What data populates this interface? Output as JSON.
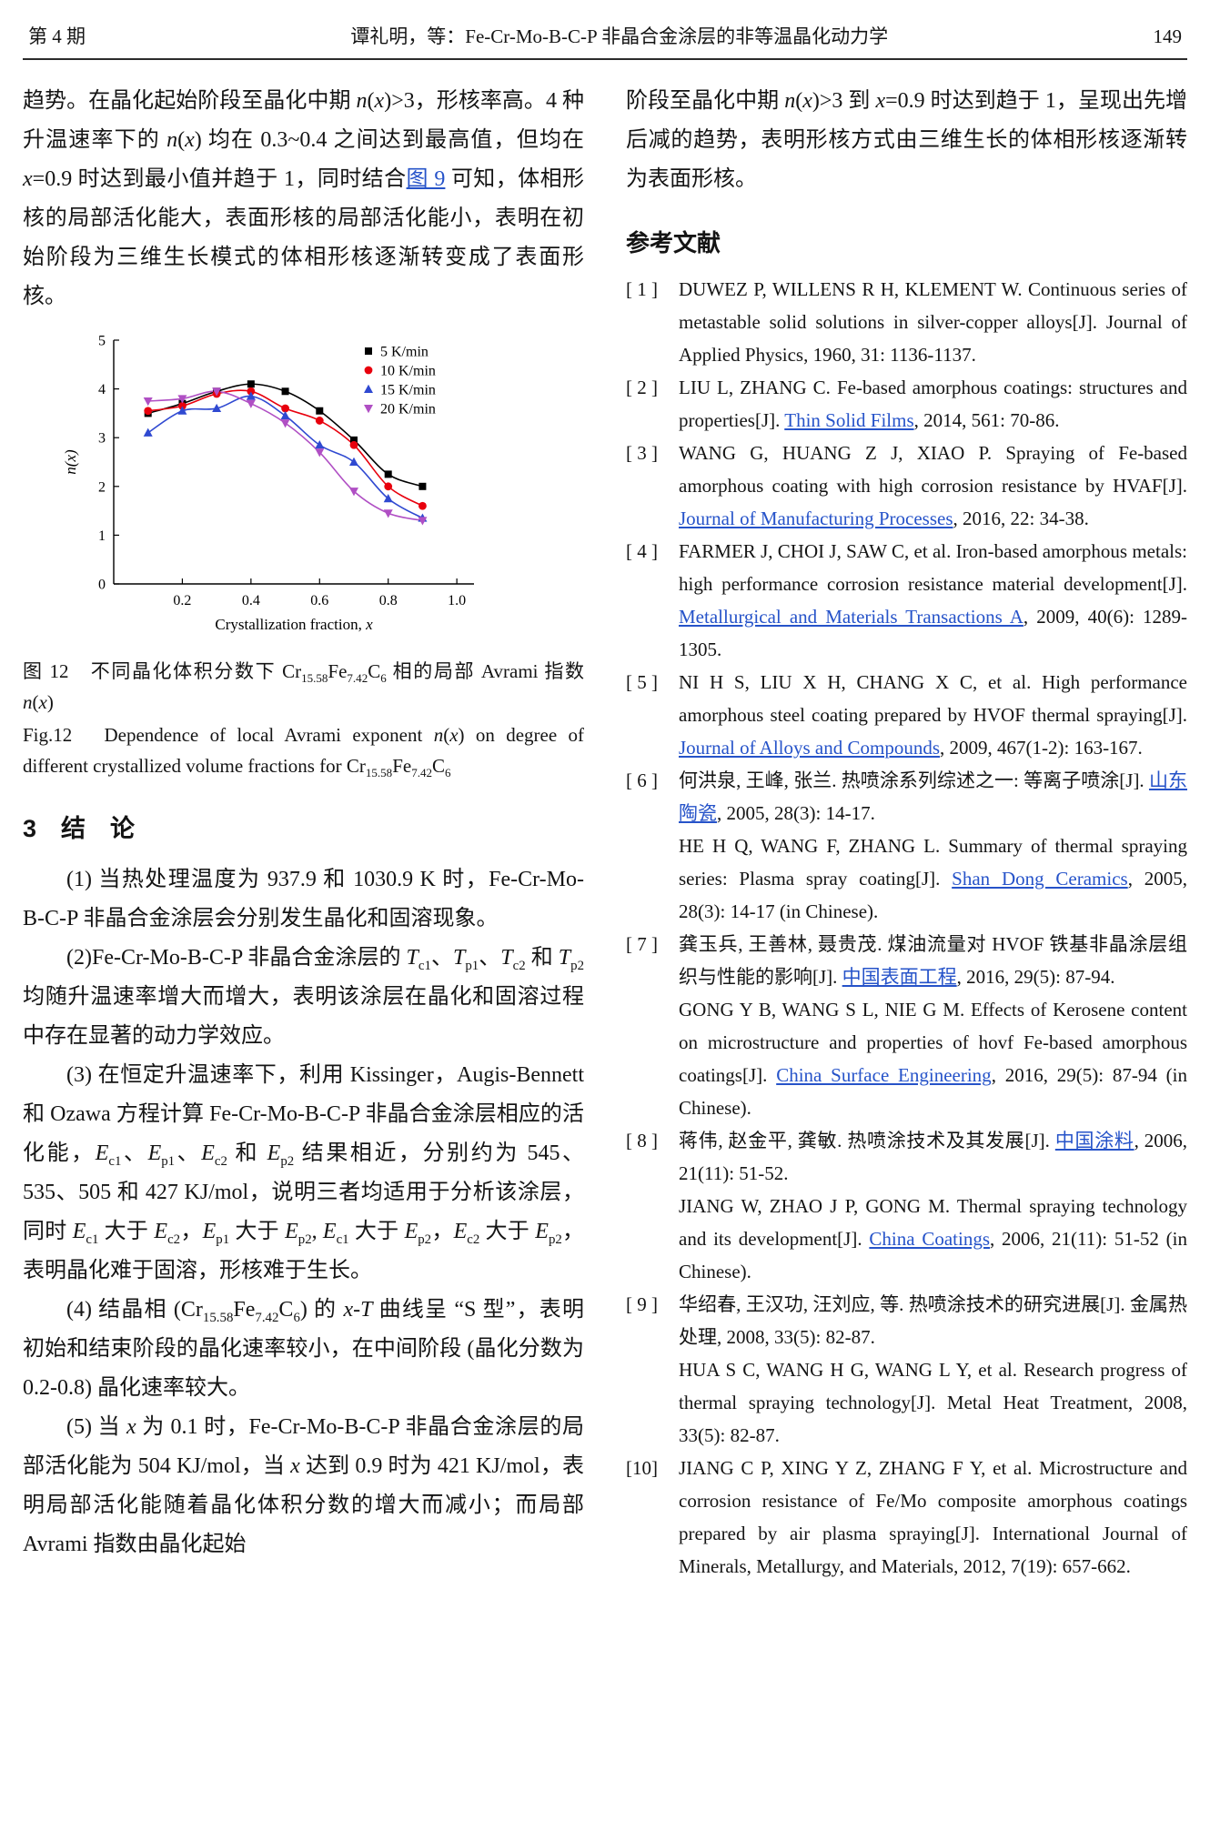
{
  "header": {
    "issue": "第 4 期",
    "title": "谭礼明，等：Fe-Cr-Mo-B-C-P 非晶合金涂层的非等温晶化动力学",
    "page_number": "149"
  },
  "colors": {
    "link": "#2653c9",
    "text": "#141414",
    "axis": "#000000"
  },
  "left_column": {
    "para_continuation": [
      {
        "t": "趋势。在晶化起始阶段至晶化中期 "
      },
      {
        "t": "n",
        "i": true
      },
      {
        "t": "("
      },
      {
        "t": "x",
        "i": true
      },
      {
        "t": ")>3，形核率高。4 种升温速率下的 "
      },
      {
        "t": "n",
        "i": true
      },
      {
        "t": "("
      },
      {
        "t": "x",
        "i": true
      },
      {
        "t": ") 均在 0.3~0.4 之间达到最高值，但均在 "
      },
      {
        "t": "x",
        "i": true
      },
      {
        "t": "=0.9 时达到最小值并趋于 1，同时结合"
      },
      {
        "t": "图 9",
        "link": true,
        "name": "figure-9-link"
      },
      {
        "t": " 可知，体相形核的局部活化能大，表面形核的局部活化能小，表明在初始阶段为三维生长模式的体相形核逐渐转变成了表面形核。"
      }
    ],
    "figure": {
      "caption_zh": [
        {
          "t": "图 12　不同晶化体积分数下 Cr"
        },
        {
          "t": "15.58",
          "sub": true
        },
        {
          "t": "Fe"
        },
        {
          "t": "7.42",
          "sub": true
        },
        {
          "t": "C"
        },
        {
          "t": "6",
          "sub": true
        },
        {
          "t": " 相的局部 Avrami 指数 "
        },
        {
          "t": "n",
          "i": true
        },
        {
          "t": "("
        },
        {
          "t": "x",
          "i": true
        },
        {
          "t": ")"
        }
      ],
      "caption_en": [
        {
          "t": "Fig.12　Dependence of local Avrami exponent "
        },
        {
          "t": "n",
          "i": true
        },
        {
          "t": "("
        },
        {
          "t": "x",
          "i": true
        },
        {
          "t": ") on degree of different crystallized volume fractions for Cr"
        },
        {
          "t": "15.58",
          "sub": true
        },
        {
          "t": "Fe"
        },
        {
          "t": "7.42",
          "sub": true
        },
        {
          "t": "C"
        },
        {
          "t": "6",
          "sub": true
        }
      ]
    },
    "section": {
      "heading": "3　结　论",
      "paragraphs": [
        [
          {
            "t": "(1) 当热处理温度为 937.9 和 1030.9 K 时，Fe-Cr-Mo-B-C-P 非晶合金涂层会分别发生晶化和固溶现象。"
          }
        ],
        [
          {
            "t": "(2)Fe-Cr-Mo-B-C-P 非晶合金涂层的 "
          },
          {
            "t": "T",
            "i": true
          },
          {
            "t": "c1",
            "sub": true
          },
          {
            "t": "、"
          },
          {
            "t": "T",
            "i": true
          },
          {
            "t": "p1",
            "sub": true
          },
          {
            "t": "、"
          },
          {
            "t": "T",
            "i": true
          },
          {
            "t": "c2",
            "sub": true
          },
          {
            "t": " 和 "
          },
          {
            "t": "T",
            "i": true
          },
          {
            "t": "p2",
            "sub": true
          },
          {
            "t": " 均随升温速率增大而增大，表明该涂层在晶化和固溶过程中存在显著的动力学效应。"
          }
        ],
        [
          {
            "t": "(3) 在恒定升温速率下，利用 Kissinger，Augis-Bennett 和 Ozawa 方程计算 Fe-Cr-Mo-B-C-P 非晶合金涂层相应的活化能，"
          },
          {
            "t": "E",
            "i": true
          },
          {
            "t": "c1",
            "sub": true
          },
          {
            "t": "、"
          },
          {
            "t": "E",
            "i": true
          },
          {
            "t": "p1",
            "sub": true
          },
          {
            "t": "、"
          },
          {
            "t": "E",
            "i": true
          },
          {
            "t": "c2",
            "sub": true
          },
          {
            "t": " 和 "
          },
          {
            "t": "E",
            "i": true
          },
          {
            "t": "p2",
            "sub": true
          },
          {
            "t": " 结果相近，分别约为 545、535、505 和 427 KJ/mol，说明三者均适用于分析该涂层，同时 "
          },
          {
            "t": "E",
            "i": true
          },
          {
            "t": "c1",
            "sub": true
          },
          {
            "t": " 大于 "
          },
          {
            "t": "E",
            "i": true
          },
          {
            "t": "c2",
            "sub": true
          },
          {
            "t": "，"
          },
          {
            "t": "E",
            "i": true
          },
          {
            "t": "p1",
            "sub": true
          },
          {
            "t": " 大于 "
          },
          {
            "t": "E",
            "i": true
          },
          {
            "t": "p2",
            "sub": true
          },
          {
            "t": ", "
          },
          {
            "t": "E",
            "i": true
          },
          {
            "t": "c1",
            "sub": true
          },
          {
            "t": " 大于 "
          },
          {
            "t": "E",
            "i": true
          },
          {
            "t": "p2",
            "sub": true
          },
          {
            "t": "，"
          },
          {
            "t": "E",
            "i": true
          },
          {
            "t": "c2",
            "sub": true
          },
          {
            "t": " 大于 "
          },
          {
            "t": "E",
            "i": true
          },
          {
            "t": "p2",
            "sub": true
          },
          {
            "t": "，表明晶化难于固溶，形核难于生长。"
          }
        ],
        [
          {
            "t": "(4) 结晶相 (Cr"
          },
          {
            "t": "15.58",
            "sub": true
          },
          {
            "t": "Fe"
          },
          {
            "t": "7.42",
            "sub": true
          },
          {
            "t": "C"
          },
          {
            "t": "6",
            "sub": true
          },
          {
            "t": ") 的 "
          },
          {
            "t": "x",
            "i": true
          },
          {
            "t": "-"
          },
          {
            "t": "T",
            "i": true
          },
          {
            "t": " 曲线呈 “S 型”，表明初始和结束阶段的晶化速率较小，在中间阶段 (晶化分数为 0.2-0.8) 晶化速率较大。"
          }
        ],
        [
          {
            "t": "(5) 当 "
          },
          {
            "t": "x",
            "i": true
          },
          {
            "t": " 为 0.1 时，Fe-Cr-Mo-B-C-P 非晶合金涂层的局部活化能为 504 KJ/mol，当 "
          },
          {
            "t": "x",
            "i": true
          },
          {
            "t": " 达到 0.9 时为 421 KJ/mol，表明局部活化能随着晶化体积分数的增大而减小；而局部 Avrami 指数由晶化起始"
          }
        ]
      ]
    }
  },
  "right_column": {
    "para_continuation": [
      {
        "t": "阶段至晶化中期 "
      },
      {
        "t": "n",
        "i": true
      },
      {
        "t": "("
      },
      {
        "t": "x",
        "i": true
      },
      {
        "t": ")>3 到 "
      },
      {
        "t": "x",
        "i": true
      },
      {
        "t": "=0.9 时达到趋于 1，呈现出先增后减的趋势，表明形核方式由三维生长的体相形核逐渐转为表面形核。"
      }
    ],
    "references_heading": "参考文献",
    "references": [
      {
        "label": "[ 1 ]",
        "paras": [
          [
            {
              "t": "DUWEZ P, WILLENS R H, KLEMENT W. Continuous series of metastable solid solutions in silver-copper alloys[J]. Journal of Applied Physics, 1960, 31: 1136-1137."
            }
          ]
        ]
      },
      {
        "label": "[ 2 ]",
        "paras": [
          [
            {
              "t": "LIU L, ZHANG C. Fe-based amorphous coatings: structures and properties[J]. "
            },
            {
              "t": "Thin Solid Films",
              "link": true,
              "name": "journal-link"
            },
            {
              "t": ", 2014, 561: 70-86."
            }
          ]
        ]
      },
      {
        "label": "[ 3 ]",
        "paras": [
          [
            {
              "t": "WANG G, HUANG Z J, XIAO P. Spraying of Fe-based amorphous coating with high corrosion resistance by HVAF[J]. "
            },
            {
              "t": "Journal of Manufacturing Processes",
              "link": true,
              "name": "journal-link"
            },
            {
              "t": ", 2016, 22: 34-38."
            }
          ]
        ]
      },
      {
        "label": "[ 4 ]",
        "paras": [
          [
            {
              "t": "FARMER J, CHOI J, SAW C, et al. Iron-based amorphous metals: high performance corrosion resistance material development[J]. "
            },
            {
              "t": "Metallurgical and Materials Transactions A",
              "link": true,
              "name": "journal-link"
            },
            {
              "t": ", 2009, 40(6): 1289-1305."
            }
          ]
        ]
      },
      {
        "label": "[ 5 ]",
        "paras": [
          [
            {
              "t": "NI H S, LIU X H, CHANG X C, et al. High performance amorphous steel coating prepared by HVOF thermal spraying[J]. "
            },
            {
              "t": "Journal of Alloys and Compounds",
              "link": true,
              "name": "journal-link"
            },
            {
              "t": ", 2009, 467(1-2): 163-167."
            }
          ]
        ]
      },
      {
        "label": "[ 6 ]",
        "paras": [
          [
            {
              "t": "何洪泉, 王峰, 张兰. 热喷涂系列综述之一: 等离子喷涂[J]. "
            },
            {
              "t": "山东陶瓷",
              "link": true,
              "name": "journal-link"
            },
            {
              "t": ", 2005, 28(3): 14-17."
            }
          ],
          [
            {
              "t": "HE H Q, WANG F, ZHANG L. Summary of thermal spraying series: Plasma spray coating[J]. "
            },
            {
              "t": "Shan Dong Ceramics",
              "link": true,
              "name": "journal-link"
            },
            {
              "t": ", 2005, 28(3): 14-17 (in Chinese)."
            }
          ]
        ]
      },
      {
        "label": "[ 7 ]",
        "paras": [
          [
            {
              "t": "龚玉兵, 王善林, 聂贵茂. 煤油流量对 HVOF 铁基非晶涂层组织与性能的影响[J]. "
            },
            {
              "t": "中国表面工程",
              "link": true,
              "name": "journal-link"
            },
            {
              "t": ", 2016, 29(5): 87-94."
            }
          ],
          [
            {
              "t": "GONG Y B, WANG S L, NIE G M. Effects of Kerosene content on microstructure and properties of hovf Fe-based amorphous coatings[J]. "
            },
            {
              "t": "China Surface Engineering",
              "link": true,
              "name": "journal-link"
            },
            {
              "t": ", 2016, 29(5): 87-94 (in Chinese)."
            }
          ]
        ]
      },
      {
        "label": "[ 8 ]",
        "paras": [
          [
            {
              "t": "蒋伟, 赵金平, 龚敏. 热喷涂技术及其发展[J]. "
            },
            {
              "t": "中国涂料",
              "link": true,
              "name": "journal-link"
            },
            {
              "t": ", 2006, 21(11): 51-52."
            }
          ],
          [
            {
              "t": "JIANG W, ZHAO J P, GONG M. Thermal spraying technology and its development[J]. "
            },
            {
              "t": "China Coatings",
              "link": true,
              "name": "journal-link"
            },
            {
              "t": ", 2006, 21(11): 51-52 (in Chinese)."
            }
          ]
        ]
      },
      {
        "label": "[ 9 ]",
        "paras": [
          [
            {
              "t": "华绍春, 王汉功, 汪刘应, 等. 热喷涂技术的研究进展[J]. 金属热处理, 2008, 33(5): 82-87."
            }
          ],
          [
            {
              "t": "HUA S C, WANG H G, WANG L Y, et al. Research progress of thermal spraying technology[J]. Metal Heat Treatment, 2008, 33(5): 82-87."
            }
          ]
        ]
      },
      {
        "label": "[10]",
        "paras": [
          [
            {
              "t": "JIANG C P, XING Y Z, ZHANG F Y, et al. Microstructure and corrosion resistance of Fe/Mo composite amorphous coatings prepared by air plasma spraying[J]. International Journal of Minerals, Metallurgy, and Materials, 2012, 7(19): 657-662."
            }
          ]
        ]
      }
    ]
  },
  "chart_data": {
    "type": "scatter",
    "title": "",
    "xlabel": "Crystallization fraction, x",
    "ylabel": "n(x)",
    "xlim": [
      0,
      1.05
    ],
    "ylim": [
      0,
      5
    ],
    "xticks": [
      0.2,
      0.4,
      0.6,
      0.8,
      1.0
    ],
    "yticks": [
      0,
      1,
      2,
      3,
      4,
      5
    ],
    "legend_position": "top-right",
    "grid": false,
    "x": [
      0.1,
      0.2,
      0.3,
      0.4,
      0.5,
      0.6,
      0.7,
      0.8,
      0.9
    ],
    "series": [
      {
        "name": "5 K/min",
        "color": "#000000",
        "marker": "square",
        "values": [
          3.5,
          3.7,
          3.95,
          4.1,
          3.95,
          3.55,
          2.95,
          2.25,
          2.0
        ]
      },
      {
        "name": "10 K/min",
        "color": "#e8000d",
        "marker": "circle",
        "values": [
          3.55,
          3.65,
          3.9,
          3.95,
          3.6,
          3.35,
          2.85,
          2.0,
          1.6
        ]
      },
      {
        "name": "15 K/min",
        "color": "#2f49d1",
        "marker": "triangle-up",
        "values": [
          3.1,
          3.55,
          3.6,
          3.85,
          3.45,
          2.85,
          2.5,
          1.75,
          1.35
        ]
      },
      {
        "name": "20 K/min",
        "color": "#b04fc4",
        "marker": "triangle-down",
        "values": [
          3.75,
          3.8,
          3.95,
          3.7,
          3.3,
          2.7,
          1.9,
          1.45,
          1.3
        ]
      }
    ]
  }
}
